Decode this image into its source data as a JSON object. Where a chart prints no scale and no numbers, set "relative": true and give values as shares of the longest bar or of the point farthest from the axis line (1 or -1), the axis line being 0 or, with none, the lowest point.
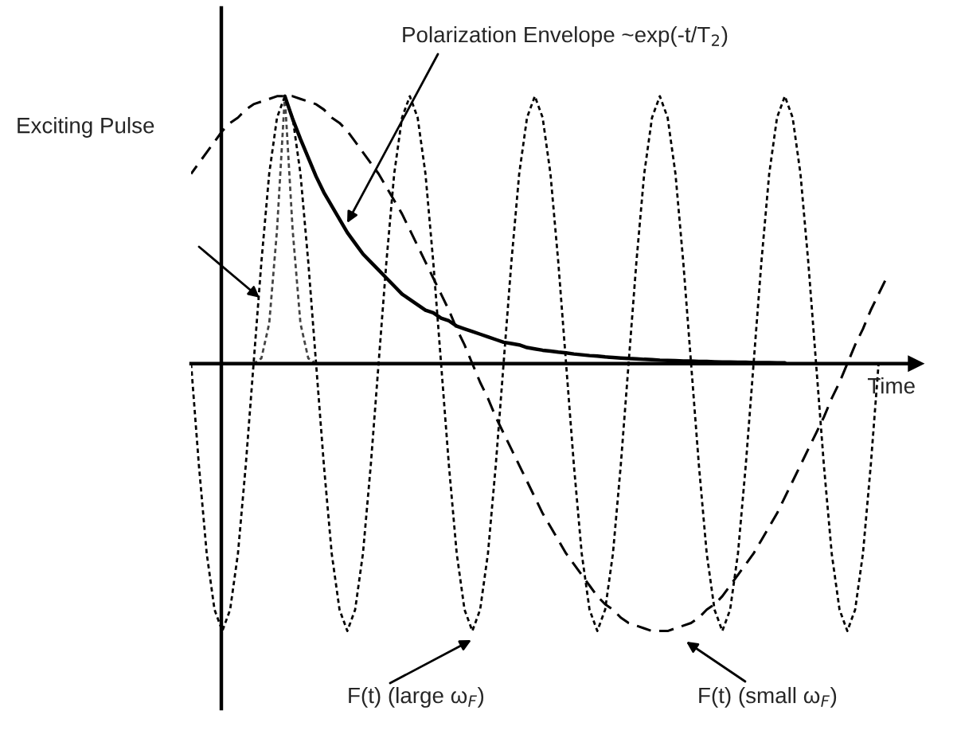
{
  "chart_data": {
    "type": "line",
    "relative": true,
    "xlabel": "Time",
    "categories": [
      null,
      null,
      null,
      null,
      null,
      null,
      null,
      null,
      null,
      null,
      null,
      null,
      null,
      null,
      null,
      null,
      null,
      null,
      null,
      null,
      null,
      null,
      null,
      null,
      null,
      null,
      null,
      null,
      null,
      null,
      null,
      null,
      null,
      null,
      null,
      null,
      null,
      null,
      null,
      null,
      null,
      null,
      null,
      null,
      null,
      null,
      null,
      null,
      null,
      null,
      null,
      null,
      null,
      null,
      null,
      null,
      null,
      null,
      null,
      null,
      null,
      null,
      null,
      null,
      null,
      null,
      null,
      null,
      null,
      null,
      null,
      null,
      null,
      null,
      null,
      null,
      null,
      null,
      null,
      null,
      null,
      null,
      null,
      null,
      null,
      null,
      null,
      null,
      null,
      null
    ],
    "series": [
      {
        "color": "#000000",
        "line_style": "dashed",
        "values": [
          0.71,
          0.75,
          0.79,
          0.83,
          0.87,
          0.9,
          0.92,
          0.95,
          0.97,
          0.98,
          0.99,
          1,
          1,
          1,
          0.99,
          0.98,
          0.97,
          0.95,
          0.92,
          0.9,
          0.87,
          0.83,
          0.79,
          0.75,
          0.71,
          0.66,
          0.61,
          0.56,
          0.5,
          0.44,
          0.38,
          0.32,
          0.26,
          0.2,
          0.13,
          0.07,
          0,
          -0.07,
          -0.13,
          -0.2,
          -0.26,
          -0.32,
          -0.38,
          -0.44,
          -0.5,
          -0.56,
          -0.61,
          -0.66,
          -0.71,
          -0.75,
          -0.79,
          -0.83,
          -0.87,
          -0.9,
          -0.92,
          -0.95,
          -0.97,
          -0.98,
          -0.99,
          -1,
          -1,
          -1,
          -0.99,
          -0.98,
          -0.97,
          -0.95,
          -0.92,
          -0.9,
          -0.87,
          -0.83,
          -0.79,
          -0.75,
          -0.71,
          -0.66,
          -0.61,
          -0.56,
          -0.5,
          -0.44,
          -0.38,
          -0.32,
          -0.26,
          -0.2,
          -0.13,
          -0.07,
          0,
          0.07,
          0.13,
          0.2,
          0.26,
          0.32
        ]
      },
      {
        "color": "#000000",
        "line_style": "dotted",
        "values": [
          0,
          -0.38,
          -0.71,
          -0.92,
          -1,
          -0.92,
          -0.71,
          -0.38,
          0,
          0.38,
          0.71,
          0.92,
          1,
          0.92,
          0.71,
          0.38,
          0,
          -0.38,
          -0.71,
          -0.92,
          -1,
          -0.92,
          -0.71,
          -0.38,
          0,
          0.38,
          0.71,
          0.92,
          1,
          0.92,
          0.71,
          0.38,
          0,
          -0.38,
          -0.71,
          -0.92,
          -1,
          -0.92,
          -0.71,
          -0.38,
          0,
          0.38,
          0.71,
          0.92,
          1,
          0.92,
          0.71,
          0.38,
          0,
          -0.38,
          -0.71,
          -0.92,
          -1,
          -0.92,
          -0.71,
          -0.38,
          0,
          0.38,
          0.71,
          0.92,
          1,
          0.92,
          0.71,
          0.38,
          0,
          -0.38,
          -0.71,
          -0.92,
          -1,
          -0.92,
          -0.71,
          -0.38,
          0,
          0.38,
          0.71,
          0.92,
          1,
          0.92,
          0.71,
          0.38,
          0,
          -0.38,
          -0.71,
          -0.92,
          -1,
          -0.92,
          -0.71,
          -0.38,
          0,
          null
        ]
      },
      {
        "color": "#444444",
        "line_style": "dotted",
        "values": [
          null,
          null,
          null,
          null,
          0,
          0,
          0,
          0,
          0,
          0.02,
          0.15,
          0.5,
          1,
          0.5,
          0.15,
          0.02,
          0,
          0,
          0,
          0,
          0,
          null,
          null,
          null,
          null,
          null,
          null,
          null,
          null,
          null,
          null,
          null,
          null,
          null,
          null,
          null,
          null,
          null,
          null,
          null,
          null,
          null,
          null,
          null,
          null,
          null,
          null,
          null,
          null,
          null,
          null,
          null,
          null,
          null,
          null,
          null,
          null,
          null,
          null,
          null,
          null,
          null,
          null,
          null,
          null,
          null,
          null,
          null,
          null,
          null,
          null,
          null,
          null,
          null,
          null,
          null,
          null,
          null,
          null,
          null,
          null,
          null,
          null,
          null,
          null,
          null,
          null,
          null,
          null,
          null
        ]
      },
      {
        "color": "#000000",
        "line_style": "solid",
        "values": [
          null,
          null,
          null,
          null,
          null,
          null,
          null,
          null,
          null,
          null,
          null,
          null,
          1,
          0.915,
          0.84,
          0.77,
          0.7,
          0.64,
          0.59,
          0.54,
          0.49,
          0.45,
          0.41,
          0.38,
          0.35,
          0.32,
          0.29,
          0.26,
          0.24,
          0.22,
          0.2,
          0.19,
          0.17,
          0.16,
          0.14,
          0.13,
          0.12,
          0.11,
          0.1,
          0.09,
          0.08,
          0.075,
          0.07,
          0.06,
          0.055,
          0.05,
          0.047,
          0.043,
          0.04,
          0.036,
          0.033,
          0.03,
          0.028,
          0.025,
          0.023,
          0.021,
          0.019,
          0.018,
          0.016,
          0.015,
          0.013,
          0.012,
          0.011,
          0.01,
          0.01,
          0.008,
          0.008,
          0.007,
          0.006,
          0.006,
          0.005,
          0.005,
          0.004,
          0.004,
          0.004,
          0.003,
          0.003,
          null,
          null,
          null,
          null,
          null,
          null,
          null,
          null,
          null,
          null,
          null,
          null,
          null
        ]
      }
    ],
    "annotations": [
      "Polarization Envelope ~exp(-t/T$_{2}$)",
      "Exciting Pulse",
      "F(t) (large ω$_{F}$)",
      "F(t) (small ω$_{F}$)"
    ]
  }
}
